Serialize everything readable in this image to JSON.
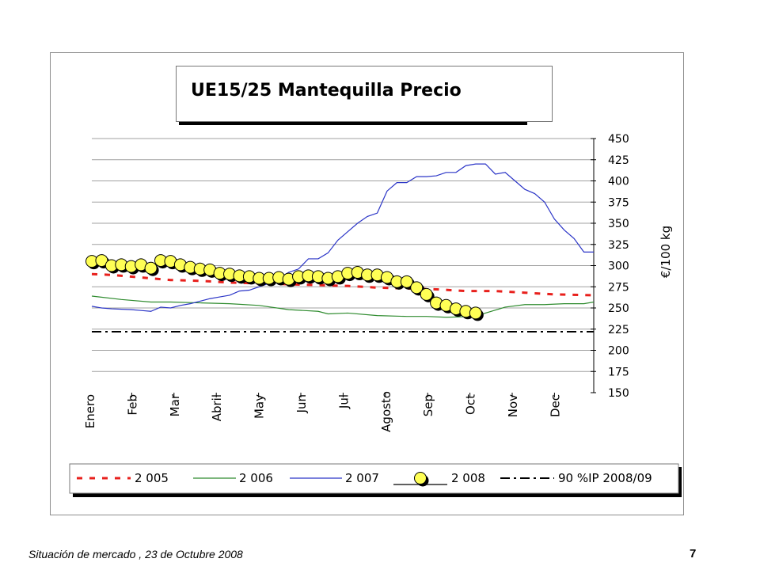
{
  "footer": {
    "text": "Situación de mercado , 23 de  Octubre 2008",
    "page_number": "7"
  },
  "chart_data": {
    "type": "line",
    "title": "UE15/25 Mantequilla Precio",
    "xlabel": "",
    "ylabel": "€/100 kg",
    "ylim": [
      150,
      450
    ],
    "yticks": [
      150,
      175,
      200,
      225,
      250,
      275,
      300,
      325,
      350,
      375,
      400,
      425,
      450
    ],
    "y_axis_position": "right",
    "x_count": 52,
    "month_labels": [
      "Enero",
      "Feb",
      "Mar",
      "Abril",
      "May",
      "Jun",
      "Jul",
      "Agosto",
      "Sep",
      "Oct",
      "Nov",
      "Dec"
    ],
    "grid": true,
    "legend_position": "bottom",
    "colors": {
      "s2005": "#e8201c",
      "s2006": "#2e8b2e",
      "s2007": "#2b35c7",
      "s2008_marker": "#ffff55",
      "s2008_line": "#000000",
      "reference": "#000000",
      "grid": "#a0a0a0"
    },
    "series": [
      {
        "name": "2 005",
        "style": "dashed",
        "x": [
          1,
          3,
          6,
          9,
          12,
          15,
          18,
          21,
          24,
          27,
          30,
          33,
          36,
          39,
          42,
          45,
          48,
          52
        ],
        "values": [
          290,
          289,
          286,
          283,
          282,
          280,
          279,
          278,
          277,
          276,
          274,
          273,
          272,
          270,
          270,
          268,
          266,
          265
        ]
      },
      {
        "name": "2 006",
        "style": "solid",
        "x": [
          1,
          4,
          7,
          9,
          12,
          15,
          18,
          21,
          24,
          25,
          27,
          30,
          33,
          35,
          37,
          40,
          41,
          43,
          45,
          47,
          49,
          51,
          52
        ],
        "values": [
          264,
          260,
          257,
          257,
          256,
          255,
          253,
          248,
          246,
          243,
          244,
          241,
          240,
          240,
          239,
          240,
          244,
          251,
          254,
          254,
          255,
          255,
          257
        ]
      },
      {
        "name": "2 007",
        "style": "solid",
        "x": [
          1,
          2,
          3,
          5,
          6,
          7,
          8,
          9,
          10,
          11,
          12,
          13,
          14,
          15,
          16,
          17,
          18,
          19,
          20,
          21,
          22,
          23,
          24,
          25,
          26,
          27,
          28,
          29,
          30,
          31,
          32,
          33,
          34,
          35,
          36,
          37,
          38,
          39,
          40,
          41,
          42,
          43,
          44,
          45,
          46,
          47,
          48,
          49,
          50,
          51,
          52
        ],
        "values": [
          252,
          250,
          249,
          248,
          247,
          246,
          251,
          250,
          253,
          255,
          258,
          261,
          263,
          265,
          270,
          271,
          275,
          279,
          285,
          292,
          296,
          308,
          308,
          315,
          330,
          340,
          350,
          358,
          362,
          388,
          398,
          398,
          405,
          405,
          406,
          410,
          410,
          418,
          420,
          420,
          408,
          410,
          400,
          390,
          385,
          375,
          355,
          342,
          332,
          316,
          316
        ]
      },
      {
        "name": "2 008",
        "style": "line-with-circle-markers",
        "x": [
          1,
          2,
          3,
          4,
          5,
          6,
          7,
          8,
          9,
          10,
          11,
          12,
          13,
          14,
          15,
          16,
          17,
          18,
          19,
          20,
          21,
          22,
          23,
          24,
          25,
          26,
          27,
          28,
          29,
          30,
          31,
          32,
          33,
          34,
          35,
          36,
          37,
          38,
          39,
          40
        ],
        "values": [
          305,
          306,
          300,
          301,
          299,
          301,
          297,
          306,
          305,
          301,
          298,
          296,
          295,
          291,
          290,
          288,
          287,
          285,
          285,
          286,
          284,
          287,
          288,
          287,
          285,
          287,
          291,
          292,
          289,
          289,
          286,
          281,
          281,
          274,
          266,
          256,
          253,
          249,
          246,
          244
        ]
      },
      {
        "name": "90 %IP 2008/09",
        "style": "dash-dot",
        "x": [
          1,
          52
        ],
        "values": [
          222,
          222
        ]
      }
    ]
  }
}
